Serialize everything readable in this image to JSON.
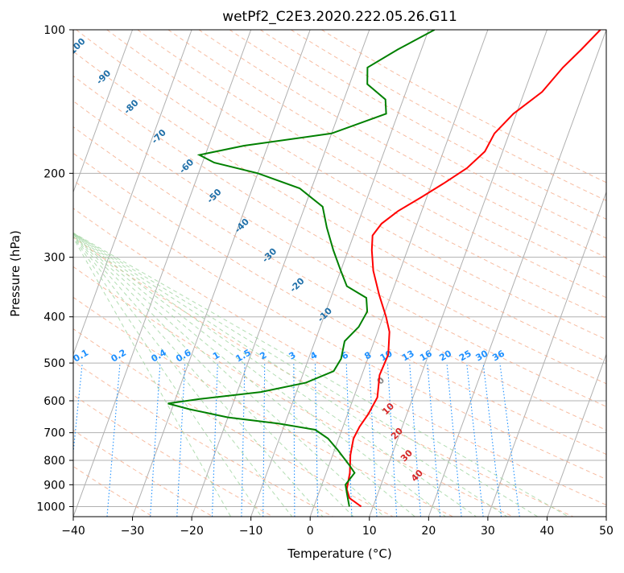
{
  "chart_data": {
    "type": "line",
    "subtype": "skew-T log-P diagram",
    "title": "wetPf2_C2E3.2020.222.05.26.G11",
    "xlabel": "Temperature (°C)",
    "ylabel": "Pressure (hPa)",
    "xlim": [
      -40,
      50
    ],
    "ylim": [
      1050,
      100
    ],
    "y_scale": "log",
    "x_ticks": [
      -40,
      -30,
      -20,
      -10,
      0,
      10,
      20,
      30,
      40,
      50
    ],
    "x_tick_labels": [
      "−40",
      "−30",
      "−20",
      "−10",
      "0",
      "10",
      "20",
      "30",
      "40",
      "50"
    ],
    "y_ticks": [
      100,
      200,
      300,
      400,
      500,
      600,
      700,
      800,
      900,
      1000
    ],
    "y_tick_labels": [
      "100",
      "200",
      "300",
      "400",
      "500",
      "600",
      "700",
      "800",
      "900",
      "1000"
    ],
    "grid": true,
    "series": [
      {
        "color": "#ff0000",
        "points": [
          [
            1000,
            8
          ],
          [
            960,
            5.5
          ],
          [
            920,
            4.5
          ],
          [
            850,
            4
          ],
          [
            780,
            3
          ],
          [
            720,
            2.5
          ],
          [
            680,
            2.8
          ],
          [
            640,
            3.5
          ],
          [
            590,
            4
          ],
          [
            530,
            3
          ],
          [
            480,
            3.2
          ],
          [
            430,
            2
          ],
          [
            400,
            0.5
          ],
          [
            360,
            -2
          ],
          [
            320,
            -4.5
          ],
          [
            290,
            -6
          ],
          [
            270,
            -6.8
          ],
          [
            255,
            -6
          ],
          [
            240,
            -4
          ],
          [
            225,
            -1
          ],
          [
            210,
            2
          ],
          [
            195,
            5
          ],
          [
            180,
            7
          ],
          [
            165,
            7.5
          ],
          [
            150,
            9.5
          ],
          [
            135,
            13
          ],
          [
            120,
            15
          ],
          [
            110,
            17
          ],
          [
            100,
            19
          ]
        ]
      },
      {
        "color": "#008000",
        "points": [
          [
            1000,
            6
          ],
          [
            950,
            5
          ],
          [
            900,
            4
          ],
          [
            850,
            4.8
          ],
          [
            820,
            3.5
          ],
          [
            760,
            0.5
          ],
          [
            720,
            -1.8
          ],
          [
            690,
            -4.5
          ],
          [
            670,
            -11
          ],
          [
            650,
            -20
          ],
          [
            625,
            -27
          ],
          [
            608,
            -31
          ],
          [
            595,
            -26
          ],
          [
            575,
            -16
          ],
          [
            550,
            -9
          ],
          [
            520,
            -5
          ],
          [
            490,
            -4.5
          ],
          [
            450,
            -5
          ],
          [
            420,
            -3.5
          ],
          [
            390,
            -3
          ],
          [
            365,
            -4
          ],
          [
            345,
            -8
          ],
          [
            320,
            -10
          ],
          [
            290,
            -12.5
          ],
          [
            260,
            -15
          ],
          [
            235,
            -17
          ],
          [
            215,
            -22
          ],
          [
            200,
            -30
          ],
          [
            190,
            -38
          ],
          [
            183,
            -41
          ],
          [
            175,
            -34
          ],
          [
            165,
            -20
          ],
          [
            150,
            -12
          ],
          [
            140,
            -13
          ],
          [
            130,
            -17
          ],
          [
            120,
            -18
          ],
          [
            110,
            -14
          ],
          [
            100,
            -9
          ]
        ]
      }
    ],
    "dry_adiabat_labels": [
      "-100",
      "-90",
      "-80",
      "-70",
      "-60",
      "-50",
      "-40",
      "-30",
      "-20",
      "-10"
    ],
    "moist_adiabat_labels": [
      "0",
      "10",
      "20",
      "30",
      "40"
    ],
    "mixing_ratio_labels": [
      "0.1",
      "0.2",
      "0.4",
      "0.6",
      "1",
      "1.5",
      "2",
      "3",
      "4",
      "6",
      "8",
      "10",
      "13",
      "16",
      "20",
      "25",
      "30",
      "36"
    ],
    "mixing_ratio_values": [
      0.1,
      0.2,
      0.4,
      0.6,
      1,
      1.5,
      2,
      3,
      4,
      6,
      8,
      10,
      13,
      16,
      20,
      25,
      30,
      36
    ],
    "colors": {
      "temperature": "#ff0000",
      "dewpoint": "#008000",
      "isotherm": "#b0b0b0",
      "dry_adiabat": "#f4a582",
      "moist_adiabat": "#9fd49f",
      "mixing_ratio": "#1e90ff",
      "axis_label_color_dry": "#1f6fa8",
      "axis_label_color_moist": "#d62728"
    }
  }
}
